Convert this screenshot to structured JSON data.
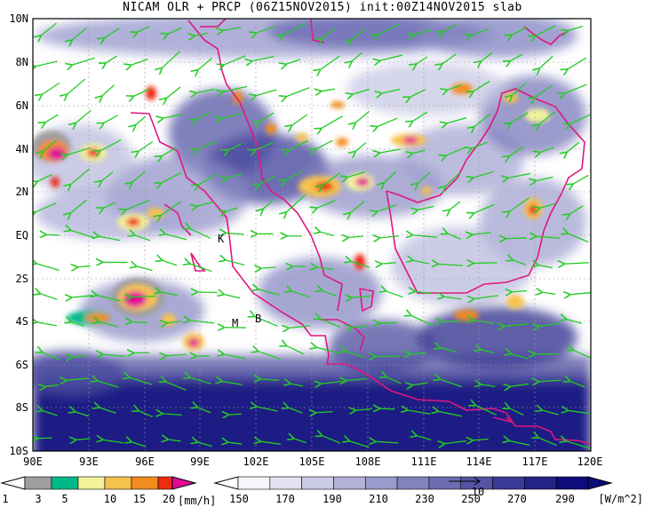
{
  "title": "NICAM OLR + PRCP (06Z15NOV2015) init:00Z14NOV2015 slab",
  "axes": {
    "lat_labels": [
      "10N",
      "8N",
      "6N",
      "4N",
      "2N",
      "EQ",
      "2S",
      "4S",
      "6S",
      "8S",
      "10S"
    ],
    "lon_labels": [
      "90E",
      "93E",
      "96E",
      "99E",
      "102E",
      "105E",
      "108E",
      "111E",
      "114E",
      "117E",
      "120E"
    ]
  },
  "station_labels": {
    "k": "K",
    "m": "M",
    "b": "B"
  },
  "precip_colorbar": {
    "unit": "[mm/h]",
    "ticks": [
      "1",
      "3",
      "5",
      "10",
      "15",
      "20"
    ],
    "colors": [
      "#9e9e9e",
      "#00b98a",
      "#f3f29b",
      "#f6c24e",
      "#f28c1f",
      "#ee2b12",
      "#e20a97"
    ]
  },
  "olr_colorbar": {
    "unit": "[W/m^2]",
    "ticks": [
      "150",
      "170",
      "190",
      "210",
      "230",
      "250",
      "270",
      "290"
    ],
    "vector_ref": "10",
    "colors": [
      "#f4f4fb",
      "#e2e2f1",
      "#cbcbe6",
      "#b2b2d9",
      "#9a9acc",
      "#8282bf",
      "#6c6cb2",
      "#5454a4",
      "#3a3a96",
      "#232388",
      "#0c0c7a"
    ]
  },
  "colors": {
    "coastline": "#e0167e",
    "wind_vector": "#22cc22",
    "ocean": "#ffffff",
    "cloud_dark": "#14147e"
  }
}
